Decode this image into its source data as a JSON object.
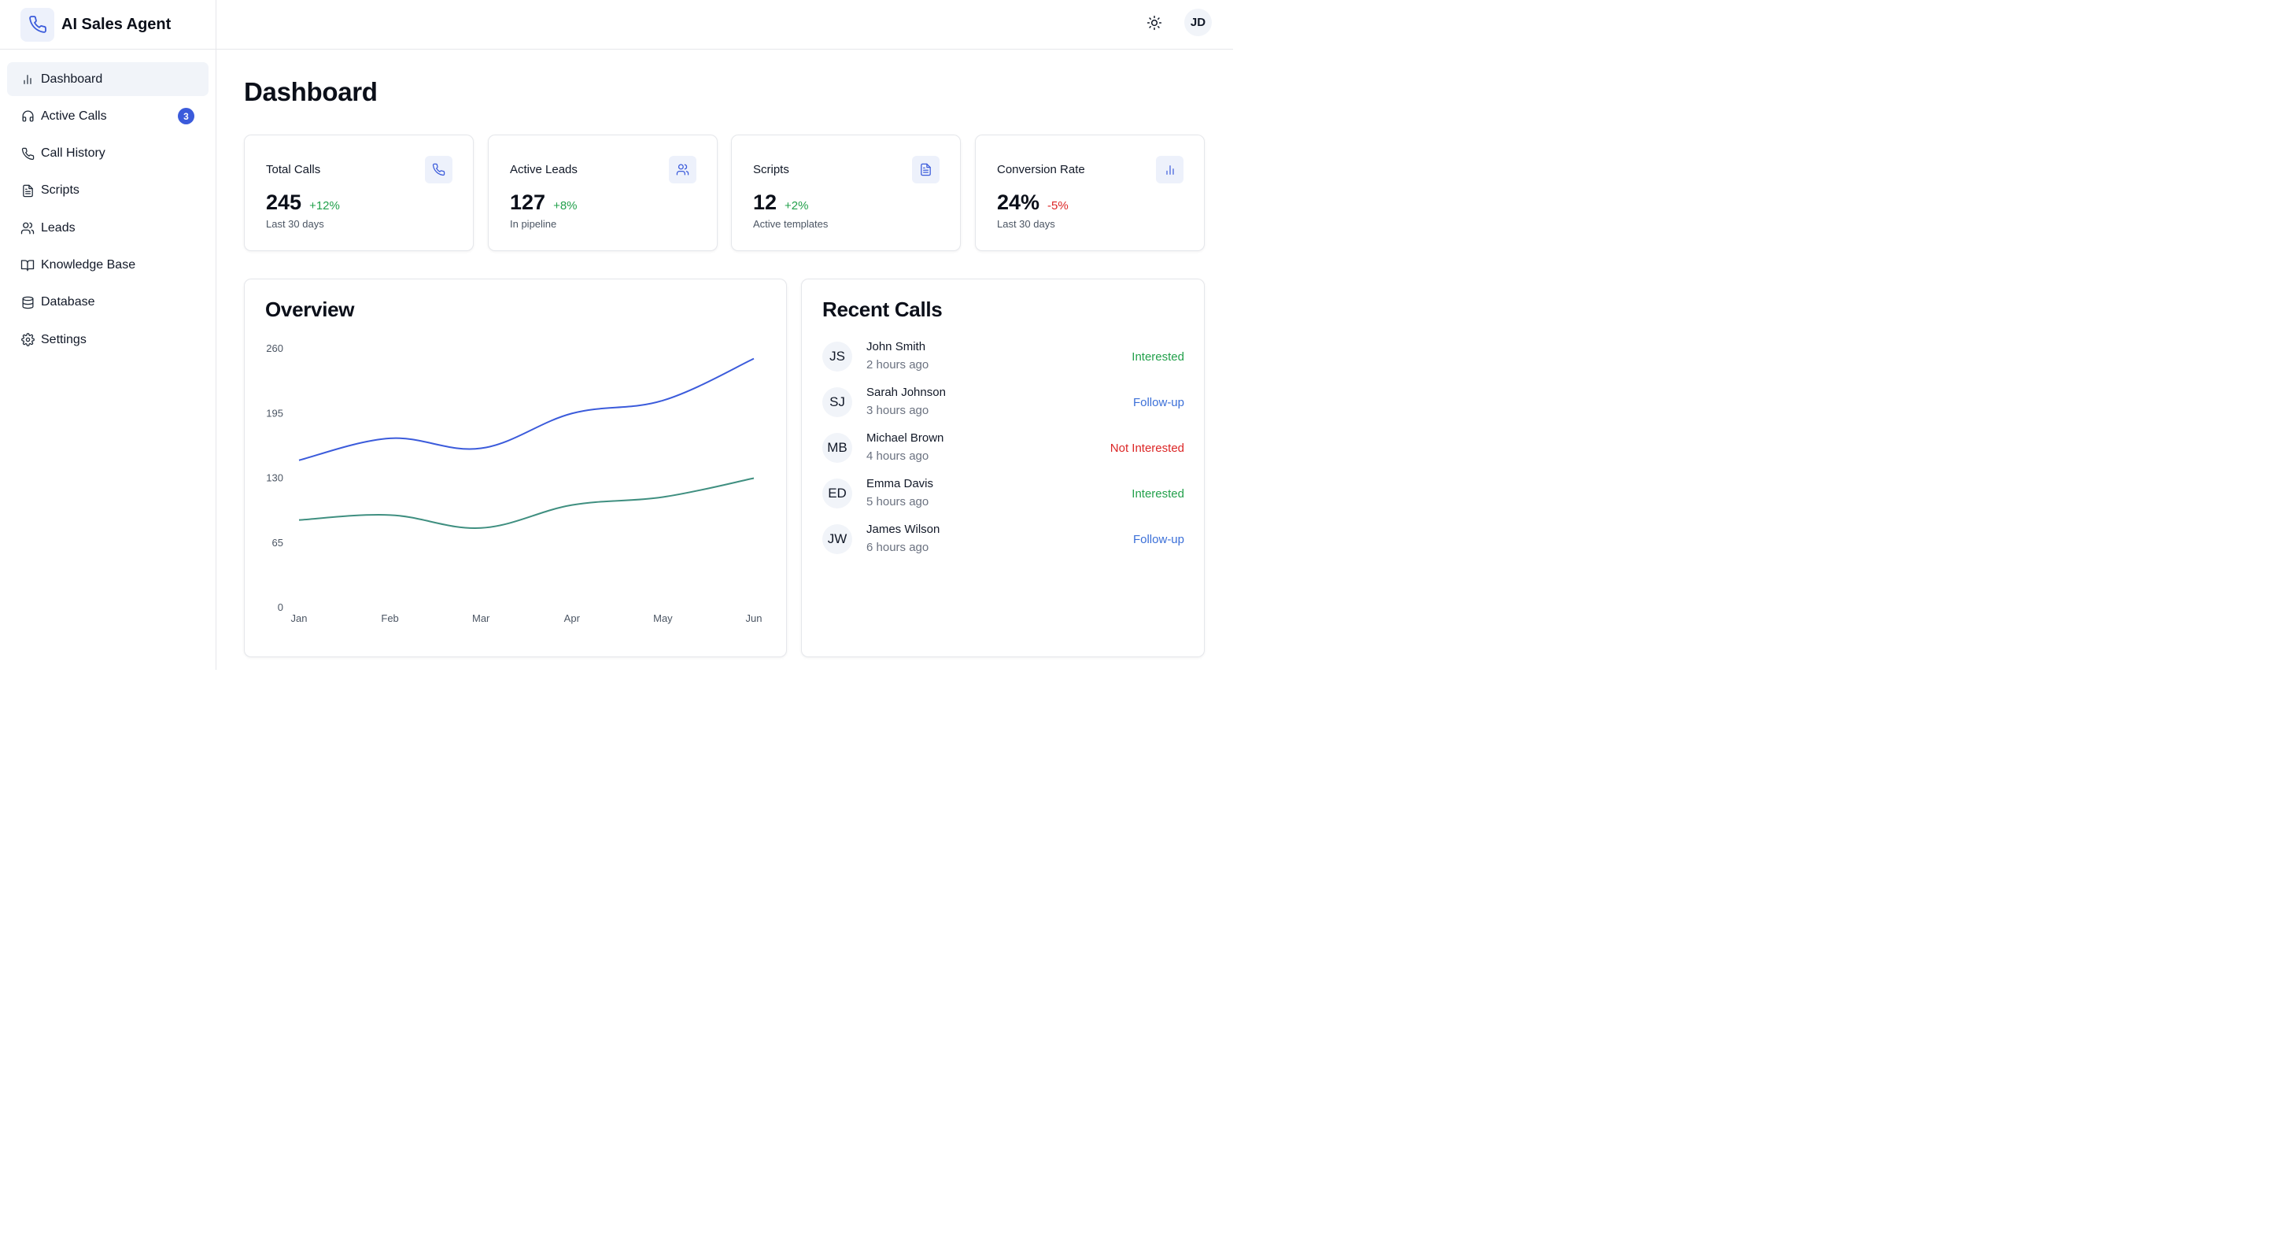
{
  "app": {
    "title": "AI Sales Agent",
    "logo_icon": "phone-icon"
  },
  "sidebar": {
    "items": [
      {
        "label": "Dashboard",
        "icon": "bar-chart-icon",
        "active": true
      },
      {
        "label": "Active Calls",
        "icon": "headphones-icon",
        "badge": "3"
      },
      {
        "label": "Call History",
        "icon": "phone-icon"
      },
      {
        "label": "Scripts",
        "icon": "file-text-icon"
      },
      {
        "label": "Leads",
        "icon": "users-icon"
      },
      {
        "label": "Knowledge Base",
        "icon": "book-open-icon"
      },
      {
        "label": "Database",
        "icon": "database-icon"
      },
      {
        "label": "Settings",
        "icon": "gear-icon"
      }
    ]
  },
  "topbar": {
    "theme_icon": "sun-icon",
    "user_initials": "JD"
  },
  "page": {
    "title": "Dashboard"
  },
  "stats": [
    {
      "title": "Total Calls",
      "value": "245",
      "delta": "+12%",
      "delta_color": "#22a04b",
      "sub": "Last 30 days",
      "icon": "phone-icon"
    },
    {
      "title": "Active Leads",
      "value": "127",
      "delta": "+8%",
      "delta_color": "#22a04b",
      "sub": "In pipeline",
      "icon": "users-icon"
    },
    {
      "title": "Scripts",
      "value": "12",
      "delta": "+2%",
      "delta_color": "#22a04b",
      "sub": "Active templates",
      "icon": "file-text-icon"
    },
    {
      "title": "Conversion Rate",
      "value": "24%",
      "delta": "-5%",
      "delta_color": "#dc2626",
      "sub": "Last 30 days",
      "icon": "bar-chart-icon"
    }
  ],
  "overview": {
    "title": "Overview"
  },
  "chart_data": {
    "type": "line",
    "categories": [
      "Jan",
      "Feb",
      "Mar",
      "Apr",
      "May",
      "Jun"
    ],
    "y_ticks": [
      0,
      65,
      130,
      195,
      260
    ],
    "ylim": [
      0,
      260
    ],
    "grid": false,
    "series": [
      {
        "values": [
          148,
          170,
          160,
          195,
          208,
          250
        ],
        "color": "#3b5bdb"
      },
      {
        "values": [
          88,
          93,
          80,
          103,
          111,
          130
        ],
        "color": "#3f8f80"
      }
    ]
  },
  "recent_calls": {
    "title": "Recent Calls",
    "items": [
      {
        "initials": "JS",
        "name": "John Smith",
        "time": "2 hours ago",
        "status": "Interested",
        "status_color": "#22a04b"
      },
      {
        "initials": "SJ",
        "name": "Sarah Johnson",
        "time": "3 hours ago",
        "status": "Follow-up",
        "status_color": "#3b6fd8"
      },
      {
        "initials": "MB",
        "name": "Michael Brown",
        "time": "4 hours ago",
        "status": "Not Interested",
        "status_color": "#dc2626"
      },
      {
        "initials": "ED",
        "name": "Emma Davis",
        "time": "5 hours ago",
        "status": "Interested",
        "status_color": "#22a04b"
      },
      {
        "initials": "JW",
        "name": "James Wilson",
        "time": "6 hours ago",
        "status": "Follow-up",
        "status_color": "#3b6fd8"
      }
    ]
  }
}
